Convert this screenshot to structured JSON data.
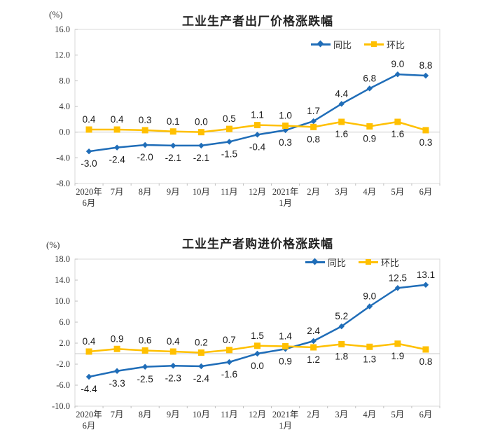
{
  "chart_data": [
    {
      "type": "line",
      "title": "工业生产者出厂价格涨跌幅",
      "unit_label": "(%)",
      "xlabel": "",
      "ylabel": "(%)",
      "ylim": [
        -8.0,
        16.0
      ],
      "ytick_step": 4.0,
      "grid": "zero-baseline-only",
      "legend_position": "top-right-inside",
      "categories": [
        [
          "2020年",
          "6月"
        ],
        [
          "7月"
        ],
        [
          "8月"
        ],
        [
          "9月"
        ],
        [
          "10月"
        ],
        [
          "11月"
        ],
        [
          "12月"
        ],
        [
          "2021年",
          "1月"
        ],
        [
          "2月"
        ],
        [
          "3月"
        ],
        [
          "4月"
        ],
        [
          "5月"
        ],
        [
          "6月"
        ]
      ],
      "series": [
        {
          "name": "同比",
          "color": "#1F6DB8",
          "marker": "diamond",
          "values": [
            -3.0,
            -2.4,
            -2.0,
            -2.1,
            -2.1,
            -1.5,
            -0.4,
            0.3,
            1.7,
            4.4,
            6.8,
            9.0,
            8.8
          ]
        },
        {
          "name": "环比",
          "color": "#FFC000",
          "marker": "square",
          "values": [
            0.4,
            0.4,
            0.3,
            0.1,
            0.0,
            0.5,
            1.1,
            1.0,
            0.8,
            1.6,
            0.9,
            1.6,
            0.3
          ]
        }
      ]
    },
    {
      "type": "line",
      "title": "工业生产者购进价格涨跌幅",
      "unit_label": "(%)",
      "xlabel": "",
      "ylabel": "(%)",
      "ylim": [
        -10.0,
        18.0
      ],
      "ytick_step": 4.0,
      "grid": "zero-baseline-only",
      "legend_position": "top-right-inside",
      "categories": [
        [
          "2020年",
          "6月"
        ],
        [
          "7月"
        ],
        [
          "8月"
        ],
        [
          "9月"
        ],
        [
          "10月"
        ],
        [
          "11月"
        ],
        [
          "12月"
        ],
        [
          "2021年",
          "1月"
        ],
        [
          "2月"
        ],
        [
          "3月"
        ],
        [
          "4月"
        ],
        [
          "5月"
        ],
        [
          "6月"
        ]
      ],
      "series": [
        {
          "name": "同比",
          "color": "#1F6DB8",
          "marker": "diamond",
          "values": [
            -4.4,
            -3.3,
            -2.5,
            -2.3,
            -2.4,
            -1.6,
            0.0,
            0.9,
            2.4,
            5.2,
            9.0,
            12.5,
            13.1
          ]
        },
        {
          "name": "环比",
          "color": "#FFC000",
          "marker": "square",
          "values": [
            0.4,
            0.9,
            0.6,
            0.4,
            0.2,
            0.7,
            1.5,
            1.4,
            1.2,
            1.8,
            1.3,
            1.9,
            0.8
          ]
        }
      ]
    }
  ],
  "axis_colors": {
    "border": "#D9D9D9",
    "zero_line": "#C9C9C9",
    "tick": "#BFBFBF"
  }
}
